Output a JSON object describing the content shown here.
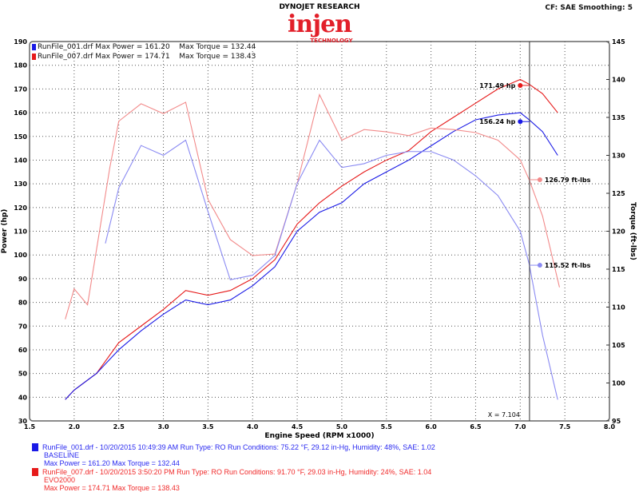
{
  "header": {
    "brand_title": "DYNOJET RESEARCH",
    "logo_text": "injen",
    "logo_sub": "TECHNOLOGY",
    "settings": "CF: SAE  Smoothing: 5"
  },
  "legend_top": [
    {
      "text": "RunFile_001.drf Max Power = 161.20",
      "torque": "Max Torque = 132.44",
      "color": "#1a1ae6"
    },
    {
      "text": "RunFile_007.drf Max Power = 174.71",
      "torque": "Max Torque = 138.43",
      "color": "#e61a1a"
    }
  ],
  "cursor": {
    "label": "X = 7.104",
    "value": 7.104
  },
  "markers": [
    {
      "label": "171.49 hp",
      "series": "red_power",
      "value": 171.49
    },
    {
      "label": "156.24 hp",
      "series": "blue_power",
      "value": 156.24
    },
    {
      "label": "126.79 ft-lbs",
      "series": "red_torque",
      "value": 126.79
    },
    {
      "label": "115.52 ft-lbs",
      "series": "blue_torque",
      "value": 115.52
    }
  ],
  "runs": [
    {
      "line1": "RunFile_001.drf - 10/20/2015 10:49:39 AM  Run Type: RO  Run Conditions: 75.22 °F, 29.12 in-Hg,  Humidity:  48%, SAE: 1.02",
      "line2": "BASELINE",
      "line3": "Max Power = 161.20  Max Torque = 132.44",
      "color": "#2a2af0"
    },
    {
      "line1": "RunFile_007.drf - 10/20/2015 3:50:20 PM  Run Type: RO  Run Conditions: 91.70 °F, 29.03 in-Hg,  Humidity:  24%, SAE: 1.04",
      "line2": "EVO2000",
      "line3": "Max Power = 174.71  Max Torque = 138.43",
      "color": "#f02a2a"
    }
  ],
  "chart_data": {
    "type": "line",
    "xlabel": "Engine Speed (RPM x1000)",
    "ylabel": "Power (hp)",
    "y2label": "Torque (ft-lbs)",
    "xlim": [
      1.5,
      8.0
    ],
    "ylim": [
      30,
      190
    ],
    "y2lim": [
      95,
      145
    ],
    "grid": true,
    "xticks": [
      "1.5",
      "2.0",
      "2.5",
      "3.0",
      "3.5",
      "4.0",
      "4.5",
      "5.0",
      "5.5",
      "6.0",
      "6.5",
      "7.0",
      "7.5",
      "8.0"
    ],
    "yticks": [
      "30",
      "40",
      "50",
      "60",
      "70",
      "80",
      "90",
      "100",
      "110",
      "120",
      "130",
      "140",
      "150",
      "160",
      "170",
      "180",
      "190"
    ],
    "y2ticks": [
      "95",
      "100",
      "105",
      "110",
      "115",
      "120",
      "125",
      "130",
      "135",
      "140",
      "145"
    ],
    "series": [
      {
        "name": "RunFile_007.drf",
        "axis": "power",
        "color": "#e61a1a",
        "x": [
          1.9,
          2.0,
          2.25,
          2.5,
          2.75,
          3.0,
          3.25,
          3.5,
          3.75,
          4.0,
          4.25,
          4.5,
          4.75,
          5.0,
          5.25,
          5.5,
          5.75,
          6.0,
          6.25,
          6.5,
          6.75,
          7.0,
          7.1,
          7.25,
          7.42
        ],
        "y": [
          39,
          43,
          50,
          63,
          70,
          77,
          85,
          83,
          85,
          90,
          98,
          113,
          122,
          129,
          135,
          140,
          144,
          152,
          158,
          164,
          170,
          174,
          172,
          168,
          160
        ]
      },
      {
        "name": "RunFile_001.drf",
        "axis": "power",
        "color": "#1a1ae6",
        "x": [
          1.9,
          2.0,
          2.25,
          2.5,
          2.75,
          3.0,
          3.25,
          3.5,
          3.75,
          4.0,
          4.25,
          4.5,
          4.75,
          5.0,
          5.25,
          5.5,
          5.75,
          6.0,
          6.25,
          6.5,
          6.75,
          7.0,
          7.1,
          7.25,
          7.42
        ],
        "y": [
          39,
          43,
          50,
          60,
          68,
          75,
          81,
          79,
          81,
          87,
          95,
          110,
          118,
          122,
          130,
          135,
          140,
          146,
          152,
          157,
          159,
          160,
          157,
          152,
          142
        ]
      },
      {
        "name": "RunFile_007.drf",
        "axis": "torque",
        "color": "#f28a8a",
        "x": [
          1.9,
          2.0,
          2.15,
          2.4,
          2.5,
          2.75,
          3.0,
          3.25,
          3.5,
          3.75,
          4.0,
          4.25,
          4.5,
          4.75,
          5.0,
          5.25,
          5.5,
          5.75,
          6.0,
          6.25,
          6.5,
          6.75,
          7.0,
          7.1,
          7.25,
          7.44
        ],
        "y": [
          108.4,
          112.4,
          110.3,
          128.4,
          134.5,
          136.8,
          135.5,
          137,
          124.2,
          118.9,
          116.8,
          117,
          126.3,
          138,
          132,
          133.4,
          133.1,
          132.6,
          133.6,
          133.4,
          133,
          132,
          129.4,
          126.8,
          122,
          112.6
        ]
      },
      {
        "name": "RunFile_001.drf",
        "axis": "torque",
        "color": "#8a8af2",
        "x": [
          2.35,
          2.5,
          2.75,
          3.0,
          3.25,
          3.5,
          3.75,
          4.0,
          4.25,
          4.5,
          4.75,
          5.0,
          5.25,
          5.5,
          5.75,
          6.0,
          6.25,
          6.5,
          6.75,
          7.0,
          7.1,
          7.25,
          7.42
        ],
        "y": [
          118.4,
          125.7,
          131.3,
          130,
          132,
          122.6,
          113.6,
          114.2,
          116.8,
          126.3,
          132,
          128.4,
          128.9,
          130,
          130.5,
          130.5,
          129.4,
          127.3,
          124.7,
          120,
          115.7,
          106.3,
          97.8
        ]
      }
    ]
  }
}
